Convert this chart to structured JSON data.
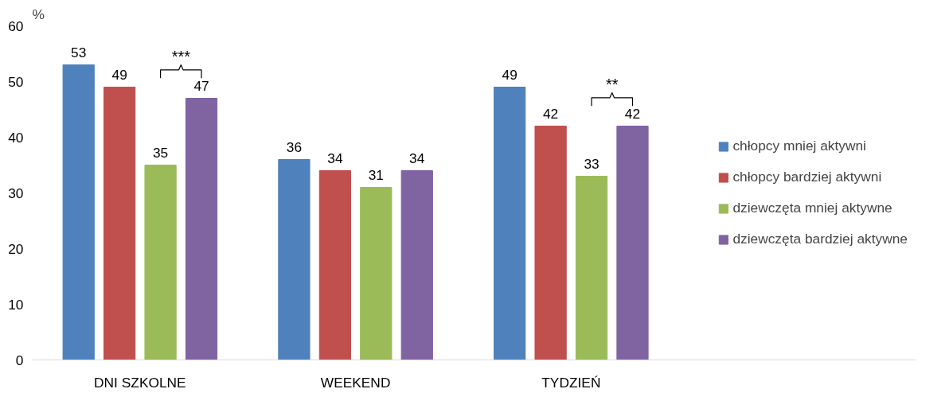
{
  "chart_data": {
    "type": "bar",
    "ylabel": "%",
    "categories": [
      "DNI SZKOLNE",
      "WEEKEND",
      "TYDZIEŃ"
    ],
    "series": [
      {
        "name": "chłopcy mniej aktywni",
        "color": "#4f81bd",
        "values": [
          53,
          36,
          49
        ]
      },
      {
        "name": "chłopcy bardziej aktywni",
        "color": "#c0504d",
        "values": [
          49,
          34,
          42
        ]
      },
      {
        "name": "dziewczęta mniej aktywne",
        "color": "#9bbb59",
        "values": [
          35,
          31,
          33
        ]
      },
      {
        "name": "dziewczęta bardziej aktywne",
        "color": "#8064a2",
        "values": [
          47,
          34,
          42
        ]
      }
    ],
    "ylim": [
      0,
      60
    ],
    "yticks": [
      0,
      10,
      20,
      30,
      40,
      50,
      60
    ],
    "grid": false,
    "legend": "right",
    "data_labels": true,
    "annotations": [
      "***",
      "**"
    ]
  }
}
